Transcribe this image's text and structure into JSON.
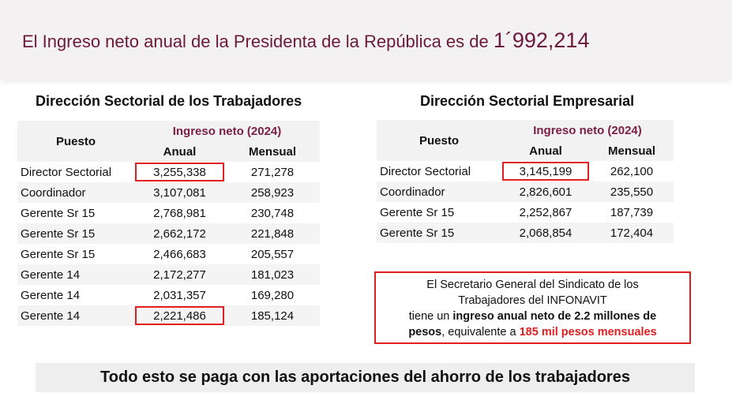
{
  "header": {
    "title_prefix": "El Ingreso neto anual de la Presidenta de la República es de",
    "title_amount": "1´992,214"
  },
  "left": {
    "title": "Dirección Sectorial de los Trabajadores",
    "col_puesto": "Puesto",
    "col_group": "Ingreso neto (2024)",
    "col_anual": "Anual",
    "col_mensual": "Mensual",
    "rows": [
      [
        "Director Sectorial",
        "3,255,338",
        "271,278"
      ],
      [
        "Coordinador",
        "3,107,081",
        "258,923"
      ],
      [
        "Gerente Sr 15",
        "2,768,981",
        "230,748"
      ],
      [
        "Gerente Sr 15",
        "2,662,172",
        "221,848"
      ],
      [
        "Gerente Sr 15",
        "2,466,683",
        "205,557"
      ],
      [
        "Gerente 14",
        "2,172,277",
        "181,023"
      ],
      [
        "Gerente 14",
        "2,031,357",
        "169,280"
      ],
      [
        "Gerente 14",
        "2,221,486",
        "185,124"
      ]
    ]
  },
  "right": {
    "title": "Dirección Sectorial Empresarial",
    "col_puesto": "Puesto",
    "col_group": "Ingreso neto (2024)",
    "col_anual": "Anual",
    "col_mensual": "Mensual",
    "rows": [
      [
        "Director Sectorial",
        "3,145,199",
        "262,100"
      ],
      [
        "Coordinador",
        "2,826,601",
        "235,550"
      ],
      [
        "Gerente Sr 15",
        "2,252,867",
        "187,739"
      ],
      [
        "Gerente Sr 15",
        "2,068,854",
        "172,404"
      ]
    ]
  },
  "note": {
    "line1": "El Secretario General del Sindicato de los",
    "line2": "Trabajadores del INFONAVIT",
    "line3a": "tiene un ",
    "line3b": "ingreso anual neto de 2.2 millones de",
    "line4a": "pesos",
    ",": ",",
    "line4b": ",  equivalente a ",
    "line4c": "185 mil pesos mensuales"
  },
  "footer": {
    "text": "Todo esto se paga con las aportaciones del ahorro de los trabajadores"
  }
}
